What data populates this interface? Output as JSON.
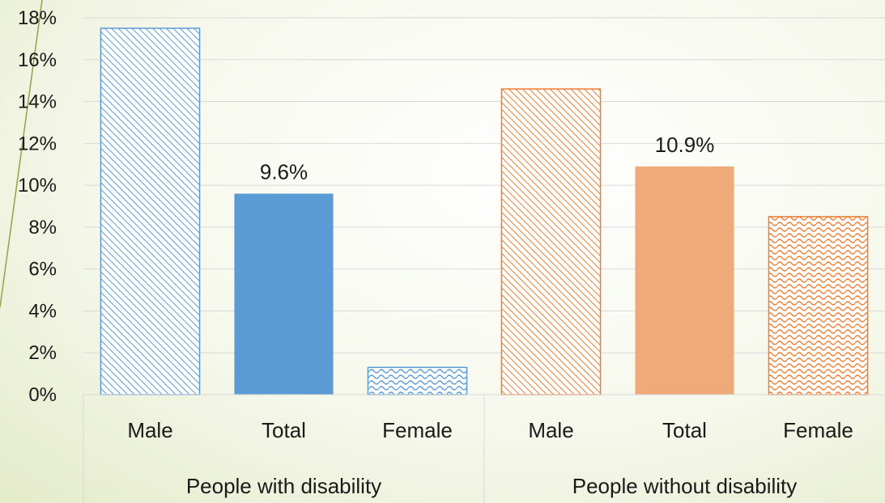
{
  "chart_data": {
    "type": "bar",
    "title": "",
    "xlabel": "",
    "ylabel": "",
    "ylim": [
      0,
      18
    ],
    "y_tick_step": 2,
    "y_tick_format": "percent",
    "grid": true,
    "groups": [
      {
        "label": "People with disability",
        "bars": [
          {
            "category": "Male",
            "value": 17.5,
            "color": "#5b9bd5",
            "fill": "hatch",
            "data_label": ""
          },
          {
            "category": "Total",
            "value": 9.6,
            "color": "#5b9bd5",
            "fill": "solid",
            "data_label": "9.6%"
          },
          {
            "category": "Female",
            "value": 1.3,
            "color": "#5b9bd5",
            "fill": "wave",
            "data_label": ""
          }
        ]
      },
      {
        "label": "People without disability",
        "bars": [
          {
            "category": "Male",
            "value": 14.6,
            "color": "#ed7d31",
            "fill": "hatch",
            "data_label": ""
          },
          {
            "category": "Total",
            "value": 10.9,
            "color": "#f0aa7a",
            "fill": "solid",
            "data_label": "10.9%"
          },
          {
            "category": "Female",
            "value": 8.5,
            "color": "#ed7d31",
            "fill": "wave",
            "data_label": ""
          }
        ]
      }
    ]
  }
}
